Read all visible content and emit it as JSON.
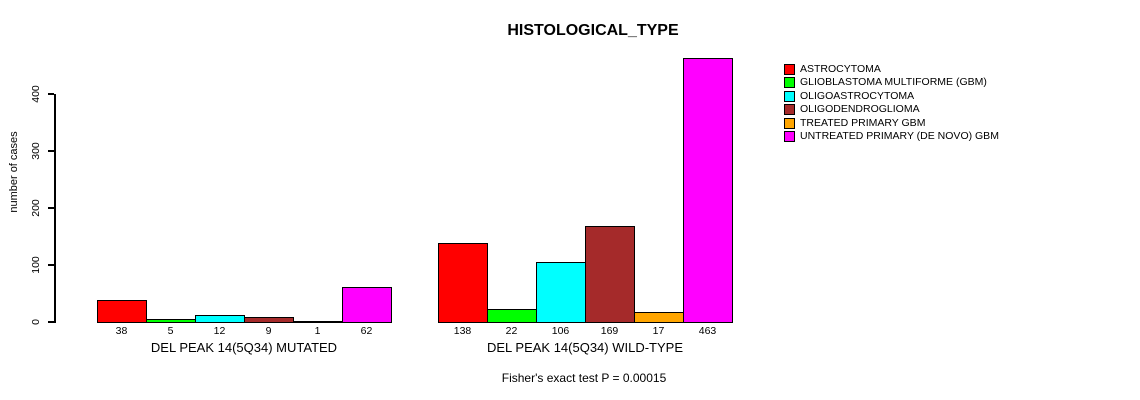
{
  "title": "HISTOLOGICAL_TYPE",
  "chart_data": {
    "type": "bar",
    "title": "HISTOLOGICAL_TYPE",
    "ylabel": "number of cases",
    "xlabel": "",
    "ylim": [
      0,
      463
    ],
    "yticks": [
      0,
      100,
      200,
      300,
      400
    ],
    "grid": false,
    "legend_position": "right",
    "series": [
      {
        "name": "ASTROCYTOMA",
        "color": "#FF0000"
      },
      {
        "name": "GLIOBLASTOMA MULTIFORME (GBM)",
        "color": "#00FF00"
      },
      {
        "name": "OLIGOASTROCYTOMA",
        "color": "#00FFFF"
      },
      {
        "name": "OLIGODENDROGLIOMA",
        "color": "#A52A2A"
      },
      {
        "name": "TREATED PRIMARY GBM",
        "color": "#FFA500"
      },
      {
        "name": "UNTREATED PRIMARY (DE NOVO) GBM",
        "color": "#FF00FF"
      }
    ],
    "groups": [
      {
        "label": "DEL PEAK 14(5Q34) MUTATED",
        "values": [
          38,
          5,
          12,
          9,
          1,
          62
        ]
      },
      {
        "label": "DEL PEAK 14(5Q34) WILD-TYPE",
        "values": [
          138,
          22,
          106,
          169,
          17,
          463
        ]
      }
    ],
    "annotation": "Fisher's exact test P = 0.00015"
  }
}
